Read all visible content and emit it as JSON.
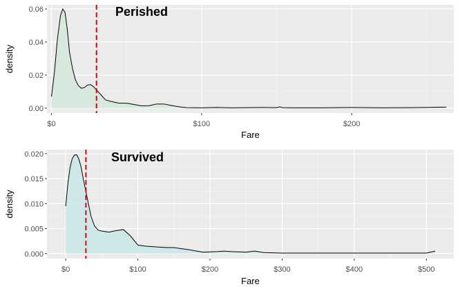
{
  "chart_data": [
    {
      "type": "area",
      "title": "Perished",
      "xlabel": "Fare",
      "ylabel": "density",
      "xlim": [
        -3,
        268
      ],
      "ylim": [
        -0.003,
        0.0625
      ],
      "x_ticks": [
        0,
        100,
        200
      ],
      "x_tick_labels": [
        "$0",
        "$100",
        "$200"
      ],
      "y_ticks": [
        0.0,
        0.02,
        0.04,
        0.06
      ],
      "y_tick_labels": [
        "0.00",
        "0.02",
        "0.04",
        "0.06"
      ],
      "mean_line_x": 30,
      "fill_color": "#d4e9d9",
      "line_color": "#000000",
      "mean_line_color": "#e0000f",
      "grid": true,
      "x": [
        0,
        2,
        4,
        6,
        7.5,
        9,
        10.5,
        12,
        14,
        16,
        18,
        20,
        22,
        24,
        26,
        28,
        30,
        33,
        36,
        40,
        45,
        50,
        55,
        60,
        65,
        70,
        75,
        80,
        85,
        90,
        100,
        110,
        120,
        130,
        140,
        150,
        152,
        154,
        160,
        180,
        200,
        220,
        240,
        263
      ],
      "y": [
        0.007,
        0.022,
        0.042,
        0.056,
        0.06,
        0.058,
        0.048,
        0.034,
        0.024,
        0.017,
        0.0135,
        0.012,
        0.0125,
        0.014,
        0.0142,
        0.013,
        0.011,
        0.008,
        0.005,
        0.004,
        0.003,
        0.003,
        0.0022,
        0.0014,
        0.0015,
        0.0025,
        0.0025,
        0.0016,
        0.0008,
        0.0003,
        0.0002,
        0.0004,
        0.0002,
        0.0003,
        0.0004,
        0.0003,
        0.0008,
        0.0003,
        0.0002,
        0.0002,
        0.0004,
        0.0002,
        0.0003,
        0.0006
      ]
    },
    {
      "type": "area",
      "title": "Survived",
      "xlabel": "Fare",
      "ylabel": "density",
      "xlim": [
        -26,
        538
      ],
      "ylim": [
        -0.001,
        0.0208
      ],
      "x_ticks": [
        0,
        100,
        200,
        300,
        400,
        500
      ],
      "x_tick_labels": [
        "$0",
        "$100",
        "$200",
        "$300",
        "$400",
        "$500"
      ],
      "y_ticks": [
        0.0,
        0.005,
        0.01,
        0.015,
        0.02
      ],
      "y_tick_labels": [
        "0.000",
        "0.005",
        "0.010",
        "0.015",
        "0.020"
      ],
      "mean_line_x": 28,
      "fill_color": "#c9e7e6",
      "line_color": "#000000",
      "mean_line_color": "#e0000f",
      "grid": true,
      "x": [
        0,
        3,
        6,
        9,
        12,
        15,
        18,
        21,
        25,
        30,
        35,
        40,
        45,
        50,
        60,
        70,
        80,
        90,
        100,
        110,
        120,
        130,
        140,
        150,
        170,
        190,
        210,
        220,
        230,
        250,
        262,
        275,
        300,
        400,
        500,
        512
      ],
      "y": [
        0.0095,
        0.014,
        0.0172,
        0.019,
        0.0197,
        0.0198,
        0.019,
        0.0175,
        0.0145,
        0.011,
        0.0075,
        0.0055,
        0.0047,
        0.0045,
        0.0043,
        0.0046,
        0.0048,
        0.0035,
        0.0017,
        0.0015,
        0.0014,
        0.0013,
        0.0012,
        0.0012,
        0.0008,
        0.0003,
        0.0004,
        0.0005,
        0.0004,
        0.0003,
        0.0005,
        0.0002,
        0.0001,
        0.0001,
        0.0001,
        0.0005
      ]
    }
  ]
}
